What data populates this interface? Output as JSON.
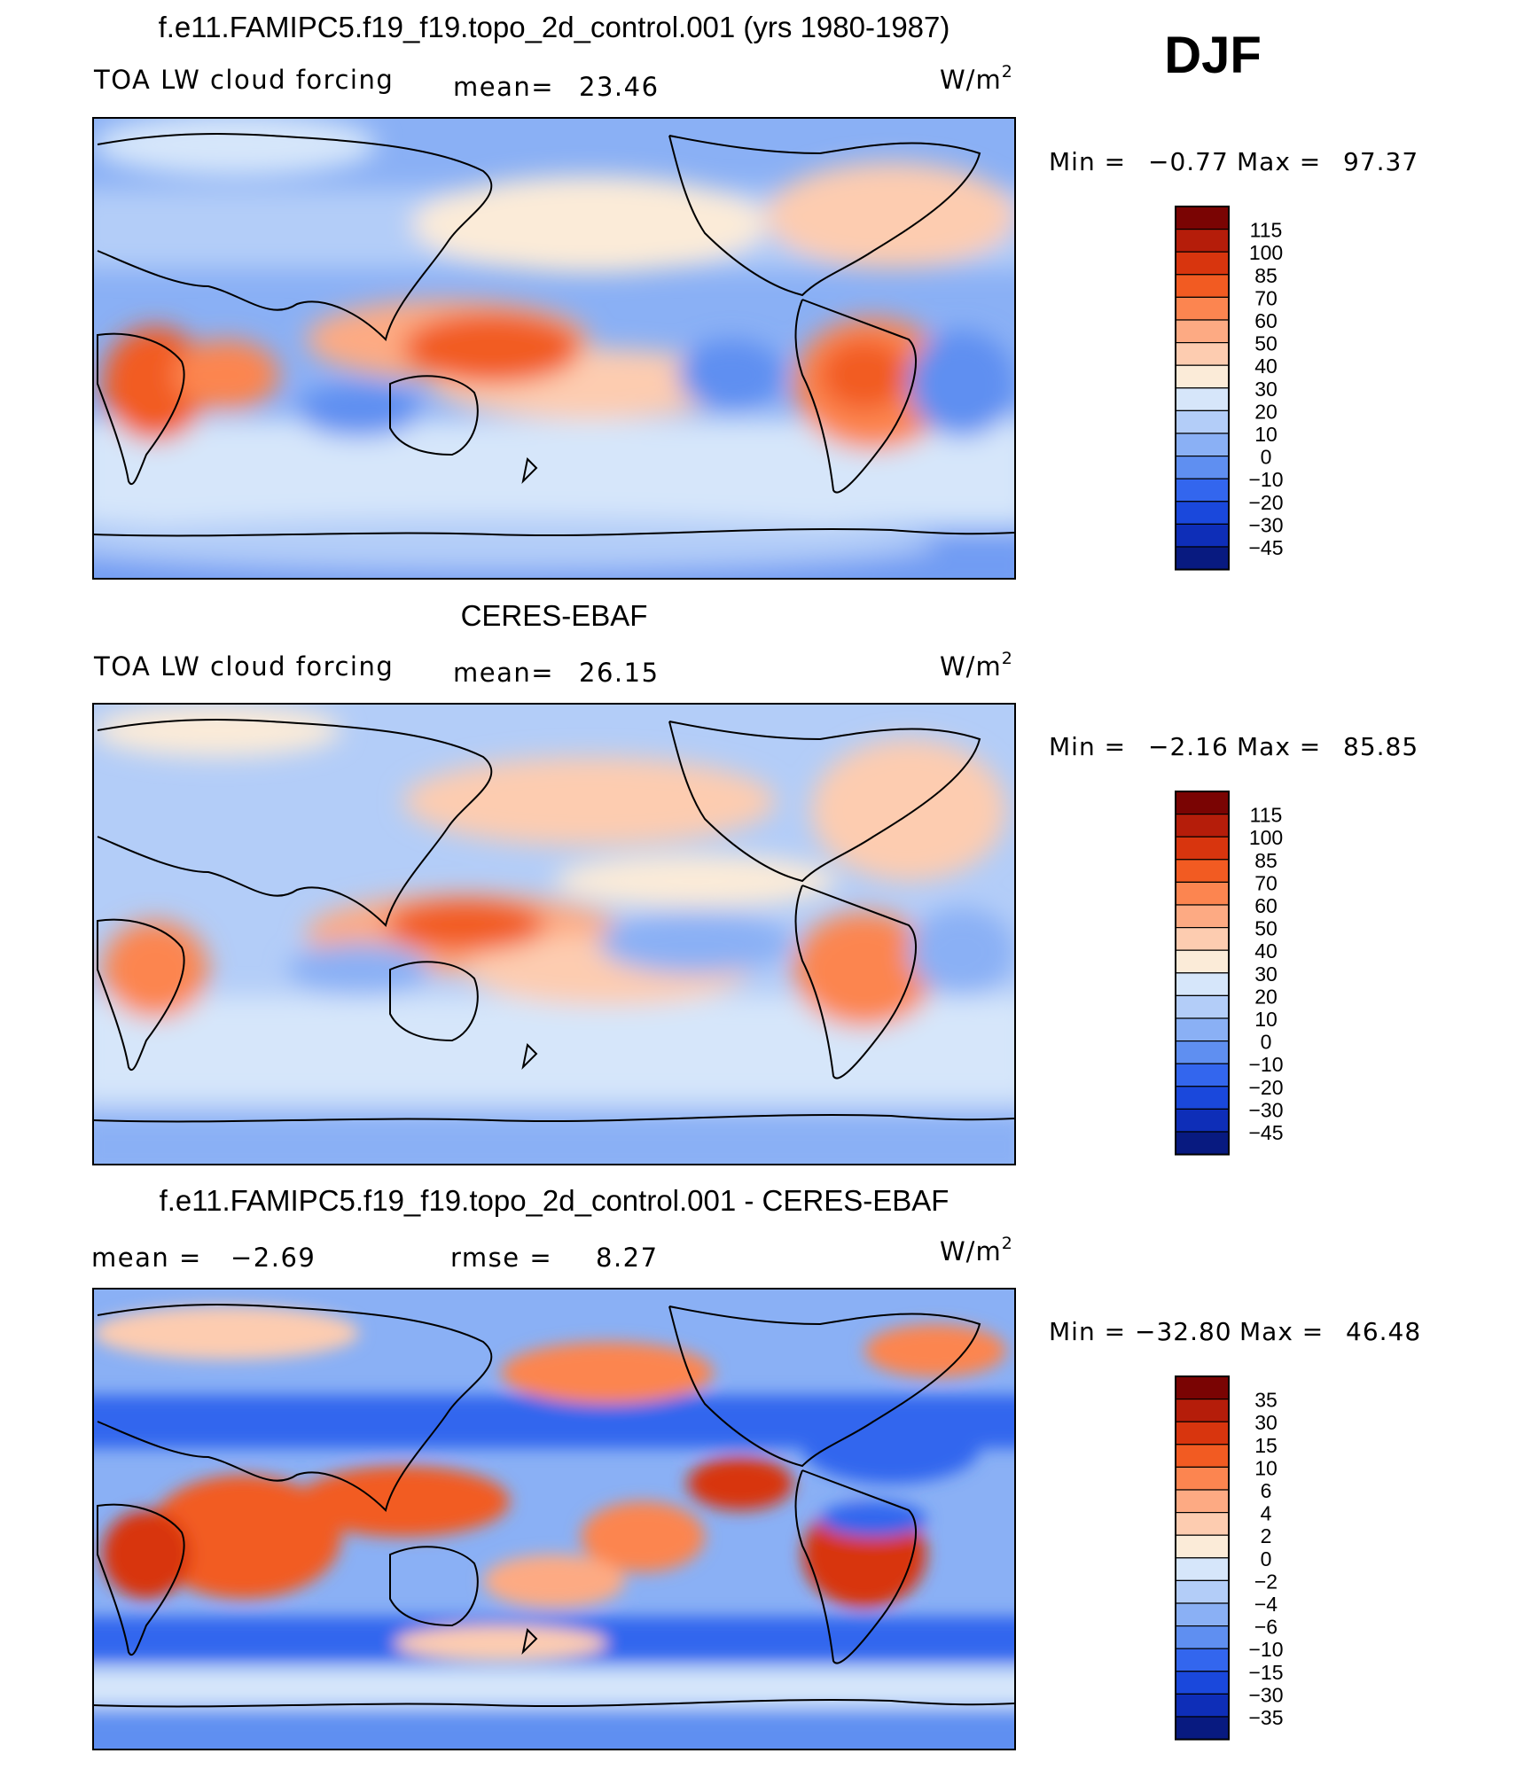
{
  "season": "DJF",
  "chart_data": [
    {
      "type": "heatmap",
      "title": "f.e11.FAMIPC5.f19_f19.topo_2d_control.001 (yrs 1980-1987)",
      "variable": "TOA LW cloud forcing",
      "stat_label": "mean=",
      "mean": "23.46",
      "units": "W/m",
      "units_sup": "2",
      "min_label": "Min  =",
      "min": "−0.77",
      "max_label": "Max  =",
      "max": "97.37",
      "colorbar": {
        "levels": [
          "115",
          "100",
          "85",
          "70",
          "60",
          "50",
          "40",
          "30",
          "20",
          "10",
          "0",
          "−10",
          "−20",
          "−30",
          "−45"
        ],
        "colors": [
          "#7a0403",
          "#b51d0a",
          "#d8350e",
          "#f25b22",
          "#fc8550",
          "#fdaa83",
          "#fdccb0",
          "#fbebd8",
          "#d6e6fa",
          "#b3cdf8",
          "#8ab0f5",
          "#5f8ff1",
          "#3366ee",
          "#1a48dc",
          "#0e2eb8",
          "#081a80"
        ]
      }
    },
    {
      "type": "heatmap",
      "title": "CERES-EBAF",
      "variable": "TOA LW cloud forcing",
      "stat_label": "mean=",
      "mean": "26.15",
      "units": "W/m",
      "units_sup": "2",
      "min_label": "Min  =",
      "min": "−2.16",
      "max_label": "Max  =",
      "max": "85.85",
      "colorbar": {
        "levels": [
          "115",
          "100",
          "85",
          "70",
          "60",
          "50",
          "40",
          "30",
          "20",
          "10",
          "0",
          "−10",
          "−20",
          "−30",
          "−45"
        ],
        "colors": [
          "#7a0403",
          "#b51d0a",
          "#d8350e",
          "#f25b22",
          "#fc8550",
          "#fdaa83",
          "#fdccb0",
          "#fbebd8",
          "#d6e6fa",
          "#b3cdf8",
          "#8ab0f5",
          "#5f8ff1",
          "#3366ee",
          "#1a48dc",
          "#0e2eb8",
          "#081a80"
        ]
      }
    },
    {
      "type": "heatmap",
      "title": "f.e11.FAMIPC5.f19_f19.topo_2d_control.001 - CERES-EBAF",
      "mean_label": "mean  =",
      "mean": "−2.69",
      "rmse_label": "rmse  =",
      "rmse": "8.27",
      "units": "W/m",
      "units_sup": "2",
      "min_label": "Min  =",
      "min": "−32.80",
      "max_label": "Max  =",
      "max": "46.48",
      "colorbar": {
        "levels": [
          "35",
          "30",
          "15",
          "10",
          "6",
          "4",
          "2",
          "0",
          "−2",
          "−4",
          "−6",
          "−10",
          "−15",
          "−30",
          "−35"
        ],
        "colors": [
          "#7a0403",
          "#b51d0a",
          "#d8350e",
          "#f25b22",
          "#fc8550",
          "#fdaa83",
          "#fdccb0",
          "#fbebd8",
          "#d6e6fa",
          "#b3cdf8",
          "#8ab0f5",
          "#5f8ff1",
          "#3366ee",
          "#1a48dc",
          "#0e2eb8",
          "#081a80"
        ]
      }
    }
  ]
}
